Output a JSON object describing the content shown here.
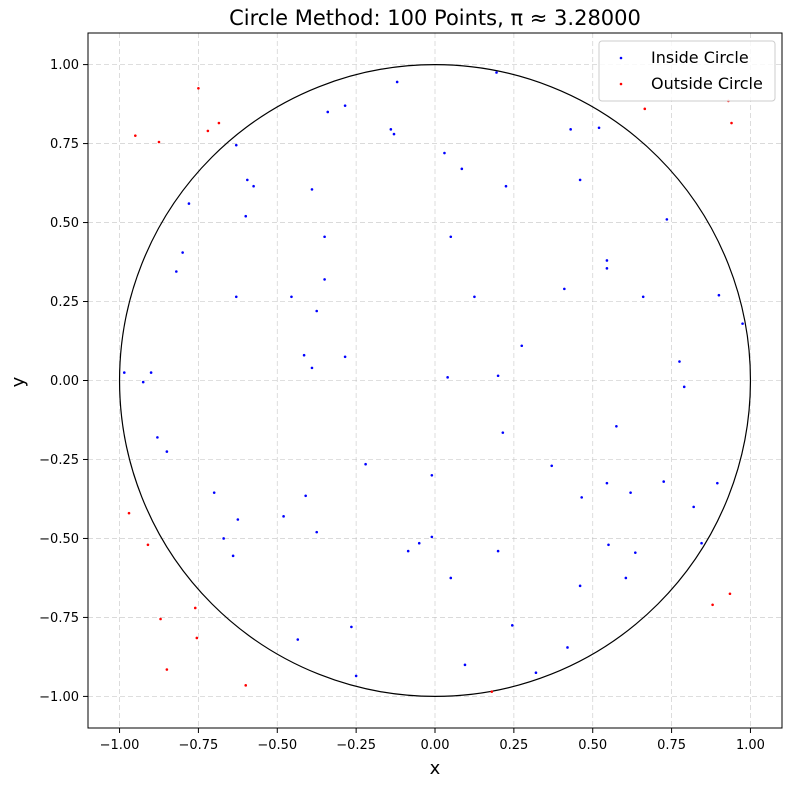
{
  "chart_data": {
    "type": "scatter",
    "title": "Circle Method: 100 Points, π ≈ 3.28000",
    "xlabel": "x",
    "ylabel": "y",
    "xlim": [
      -1.1,
      1.1
    ],
    "ylim": [
      -1.1,
      1.1
    ],
    "grid": true,
    "legend_position": "top-right",
    "xticks": [
      -1.0,
      -0.75,
      -0.5,
      -0.25,
      0.0,
      0.25,
      0.5,
      0.75,
      1.0
    ],
    "xtick_labels": [
      "−1.00",
      "−0.75",
      "−0.50",
      "−0.25",
      "0.00",
      "0.25",
      "0.50",
      "0.75",
      "1.00"
    ],
    "yticks": [
      1.0,
      0.75,
      0.5,
      0.25,
      0.0,
      -0.25,
      -0.5,
      -0.75,
      -1.0
    ],
    "ytick_labels": [
      "1.00",
      "0.75",
      "0.50",
      "0.25",
      "0.00",
      "−0.25",
      "−0.50",
      "−0.75",
      "−1.00"
    ],
    "circle": {
      "center": [
        0,
        0
      ],
      "radius": 1,
      "color": "#000000"
    },
    "series": [
      {
        "name": "Inside Circle",
        "color": "#0000ff",
        "points": [
          [
            -0.985,
            0.025
          ],
          [
            -0.925,
            -0.005
          ],
          [
            -0.9,
            0.025
          ],
          [
            -0.88,
            -0.18
          ],
          [
            -0.85,
            -0.225
          ],
          [
            -0.82,
            0.345
          ],
          [
            -0.8,
            0.405
          ],
          [
            -0.78,
            0.56
          ],
          [
            -0.7,
            -0.355
          ],
          [
            -0.67,
            -0.5
          ],
          [
            -0.64,
            -0.555
          ],
          [
            -0.63,
            0.745
          ],
          [
            -0.63,
            0.265
          ],
          [
            -0.625,
            -0.44
          ],
          [
            -0.6,
            0.52
          ],
          [
            -0.595,
            0.635
          ],
          [
            -0.575,
            0.615
          ],
          [
            -0.48,
            -0.43
          ],
          [
            -0.455,
            0.265
          ],
          [
            -0.435,
            -0.82
          ],
          [
            -0.415,
            0.08
          ],
          [
            -0.41,
            -0.365
          ],
          [
            -0.39,
            0.605
          ],
          [
            -0.39,
            0.04
          ],
          [
            -0.375,
            0.22
          ],
          [
            -0.375,
            -0.48
          ],
          [
            -0.35,
            0.455
          ],
          [
            -0.35,
            0.32
          ],
          [
            -0.34,
            0.85
          ],
          [
            -0.285,
            0.87
          ],
          [
            -0.285,
            0.075
          ],
          [
            -0.265,
            -0.78
          ],
          [
            -0.25,
            -0.935
          ],
          [
            -0.22,
            -0.265
          ],
          [
            -0.14,
            0.795
          ],
          [
            -0.13,
            0.78
          ],
          [
            -0.12,
            0.945
          ],
          [
            -0.085,
            -0.54
          ],
          [
            -0.05,
            -0.515
          ],
          [
            -0.01,
            -0.3
          ],
          [
            -0.01,
            -0.495
          ],
          [
            0.03,
            0.72
          ],
          [
            0.04,
            0.01
          ],
          [
            0.05,
            0.455
          ],
          [
            0.05,
            -0.625
          ],
          [
            0.085,
            0.67
          ],
          [
            0.095,
            -0.9
          ],
          [
            0.125,
            0.265
          ],
          [
            0.195,
            0.975
          ],
          [
            0.2,
            0.015
          ],
          [
            0.2,
            -0.54
          ],
          [
            0.215,
            -0.165
          ],
          [
            0.225,
            0.615
          ],
          [
            0.245,
            -0.775
          ],
          [
            0.275,
            0.11
          ],
          [
            0.32,
            -0.925
          ],
          [
            0.37,
            -0.27
          ],
          [
            0.41,
            0.29
          ],
          [
            0.42,
            -0.845
          ],
          [
            0.43,
            0.795
          ],
          [
            0.46,
            0.635
          ],
          [
            0.46,
            -0.65
          ],
          [
            0.465,
            -0.37
          ],
          [
            0.52,
            0.8
          ],
          [
            0.545,
            0.38
          ],
          [
            0.545,
            0.355
          ],
          [
            0.545,
            -0.325
          ],
          [
            0.55,
            -0.52
          ],
          [
            0.575,
            -0.145
          ],
          [
            0.605,
            -0.625
          ],
          [
            0.62,
            -0.355
          ],
          [
            0.635,
            -0.545
          ],
          [
            0.66,
            0.265
          ],
          [
            0.725,
            -0.32
          ],
          [
            0.735,
            0.51
          ],
          [
            0.775,
            0.06
          ],
          [
            0.79,
            -0.02
          ],
          [
            0.82,
            -0.4
          ],
          [
            0.845,
            -0.515
          ],
          [
            0.895,
            -0.325
          ],
          [
            0.9,
            0.27
          ],
          [
            0.975,
            0.18
          ]
        ]
      },
      {
        "name": "Outside Circle",
        "color": "#ff0000",
        "points": [
          [
            -0.95,
            0.775
          ],
          [
            -0.97,
            -0.42
          ],
          [
            -0.91,
            -0.52
          ],
          [
            -0.875,
            0.755
          ],
          [
            -0.87,
            -0.755
          ],
          [
            -0.85,
            -0.915
          ],
          [
            -0.76,
            -0.72
          ],
          [
            -0.755,
            -0.815
          ],
          [
            -0.75,
            0.925
          ],
          [
            -0.72,
            0.79
          ],
          [
            -0.685,
            0.815
          ],
          [
            -0.6,
            -0.965
          ],
          [
            0.18,
            -0.985
          ],
          [
            0.665,
            0.86
          ],
          [
            0.88,
            -0.71
          ],
          [
            0.93,
            0.885
          ],
          [
            0.94,
            0.815
          ],
          [
            0.935,
            -0.675
          ]
        ]
      }
    ]
  }
}
